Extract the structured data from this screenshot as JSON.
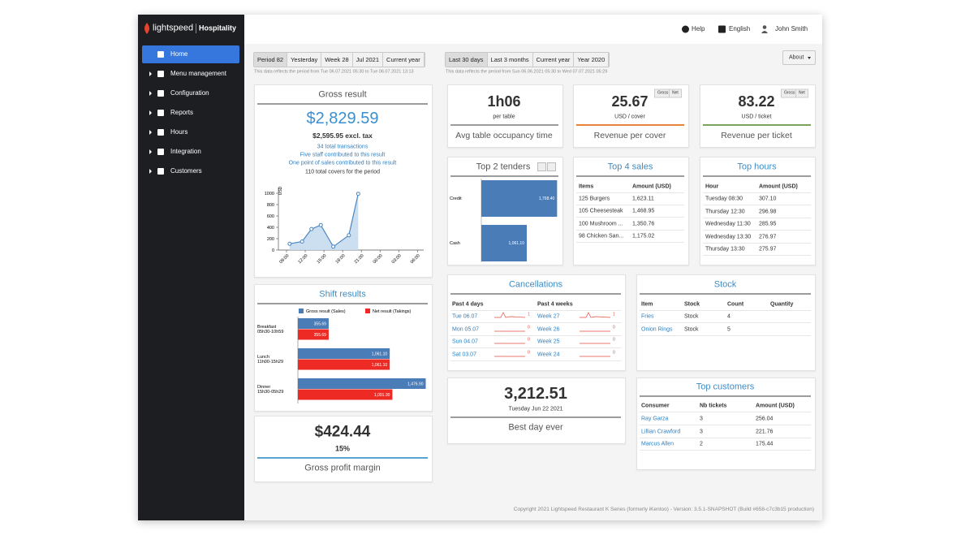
{
  "sidebar": {
    "brand": "lightspeed",
    "product": "Hospitality",
    "menu": [
      "Home",
      "Menu management",
      "Configuration",
      "Reports",
      "Hours",
      "Integration",
      "Customers"
    ]
  },
  "topbar": {
    "help": "Help",
    "language": "English",
    "user": "John Smith"
  },
  "filters": {
    "left": {
      "buttons": [
        "Period 82",
        "Yesterday",
        "Week 28",
        "Jul 2021",
        "Current year"
      ],
      "note": "This data reflects the period from Tue 06.07.2021 05:30 to Tue 06.07.2021 13:13"
    },
    "right": {
      "buttons": [
        "Last 30 days",
        "Last 3 months",
        "Current year",
        "Year 2020"
      ],
      "note": "This data reflects the period from Sun 06.06.2021 05:30 to Wed 07.07.2021 05:29"
    },
    "about": "About"
  },
  "gross_result": {
    "title": "Gross result",
    "total": "$2,829.59",
    "excl_tax": "$2,595.95 excl. tax",
    "links": [
      "34 total transactions",
      "Five staff contributed to this result",
      "One point of sales contributed to this result"
    ],
    "covers": "110 total covers for the period"
  },
  "shift_results": {
    "title": "Shift results",
    "hours": [
      "05h30-10h59",
      "11h00-15h29",
      "15h30-05h29"
    ]
  },
  "profit": {
    "value": "$424.44",
    "percent": "15%",
    "label": "Gross profit margin"
  },
  "kpis": [
    {
      "value": "1h06",
      "unit": "per table",
      "label": "Avg table occupancy time"
    },
    {
      "value": "25.67",
      "unit": "USD / cover",
      "label": "Revenue per cover",
      "toggle": [
        "Gross",
        "Net"
      ]
    },
    {
      "value": "83.22",
      "unit": "USD / ticket",
      "label": "Revenue per ticket",
      "toggle": [
        "Gross",
        "Net"
      ]
    }
  ],
  "tenders": {
    "title": "Top 2 tenders"
  },
  "top_sales": {
    "title": "Top 4 sales",
    "header": [
      "Items",
      "Amount (USD)"
    ],
    "rows": [
      [
        "125 Burgers",
        "1,623.11"
      ],
      [
        "105 Cheesesteak",
        "1,468.95"
      ],
      [
        "100 Mushroom ...",
        "1,350.76"
      ],
      [
        "98 Chicken San...",
        "1,175.02"
      ]
    ]
  },
  "top_hours": {
    "title": "Top hours",
    "header": [
      "Hour",
      "Amount (USD)"
    ],
    "rows": [
      [
        "Tuesday 08:30",
        "307.10"
      ],
      [
        "Thursday 12:30",
        "296.98"
      ],
      [
        "Wednesday 11:30",
        "285.95"
      ],
      [
        "Wednesday 13:30",
        "276.97"
      ],
      [
        "Thursday 13:30",
        "275.97"
      ]
    ]
  },
  "cancellations": {
    "title": "Cancellations",
    "days": {
      "header": "Past 4 days",
      "rows": [
        [
          "Tue 06.07",
          "1"
        ],
        [
          "Mon 05.07",
          "0"
        ],
        [
          "Sun 04.07",
          "0"
        ],
        [
          "Sat 03.07",
          "0"
        ]
      ]
    },
    "weeks": {
      "header": "Past 4 weeks",
      "rows": [
        [
          "Week 27",
          "1"
        ],
        [
          "Week 26",
          "0"
        ],
        [
          "Week 25",
          "0"
        ],
        [
          "Week 24",
          "0"
        ]
      ]
    }
  },
  "stock": {
    "title": "Stock",
    "header": [
      "Item",
      "Stock",
      "Count",
      "Quantity"
    ],
    "rows": [
      [
        "Fries",
        "Stock",
        "4"
      ],
      [
        "Onion Rings",
        "Stock",
        "5"
      ]
    ]
  },
  "best_day": {
    "value": "3,212.51",
    "date": "Tuesday Jun 22 2021",
    "label": "Best day ever"
  },
  "top_customers": {
    "title": "Top customers",
    "header": [
      "Consumer",
      "Nb tickets",
      "Amount (USD)"
    ],
    "rows": [
      [
        "Ray Garza",
        "3",
        "256.04"
      ],
      [
        "Lillian Crawford",
        "3",
        "221.76"
      ],
      [
        "Marcus Allen",
        "2",
        "175.44"
      ]
    ]
  },
  "footer": "Copyright 2021 Lightspeed Restaurant K Series (formerly iKentoo) - Version: 3.5.1-SNAPSHOT (Build #658-c7c3b15 production)",
  "chart_data": [
    {
      "type": "line",
      "y_label": "USD",
      "color": "#4a86c0",
      "x": [
        9.5,
        11.5,
        13,
        14.5,
        16.5,
        19,
        20.5
      ],
      "values": [
        110,
        150,
        370,
        440,
        60,
        260,
        990
      ],
      "xlim": [
        7.7,
        31
      ],
      "xticks": [
        {
          "value": 9,
          "label": "09:00"
        },
        {
          "value": 12,
          "label": "12:00"
        },
        {
          "value": 15,
          "label": "15:00"
        },
        {
          "value": 18,
          "label": "18:00"
        },
        {
          "value": 21,
          "label": "21:00"
        },
        {
          "value": 24,
          "label": "00:00"
        },
        {
          "value": 27,
          "label": "03:00"
        },
        {
          "value": 30,
          "label": "06:00"
        }
      ],
      "ylim": [
        0,
        1100
      ],
      "yticks": [
        0,
        200,
        400,
        600,
        800,
        1000
      ]
    },
    {
      "type": "hbar",
      "color": "#4a7db8",
      "categories": [
        "Credit",
        "Cash"
      ],
      "values": [
        1768.4,
        1061.1
      ],
      "value_labels": [
        "1,768.40",
        "1,061.10"
      ],
      "xlim": [
        0,
        1800
      ]
    },
    {
      "type": "grouped-hbar",
      "categories": [
        "Breakfast",
        "Lunch",
        "Dinner"
      ],
      "xlim": [
        0,
        1500
      ],
      "series": [
        {
          "name": "Gross result (Sales)",
          "color": "#4a7db8",
          "values": [
            355.69,
            1061.1,
            1476.9
          ],
          "value_labels": [
            "355.69",
            "1,061.10",
            "1,476.90"
          ]
        },
        {
          "name": "Net result (Takings)",
          "color": "#ee2a24",
          "values": [
            355.69,
            1061.1,
            1091.3
          ],
          "value_labels": [
            "355.69",
            "1,061.10",
            "1,091.30"
          ]
        }
      ]
    }
  ]
}
